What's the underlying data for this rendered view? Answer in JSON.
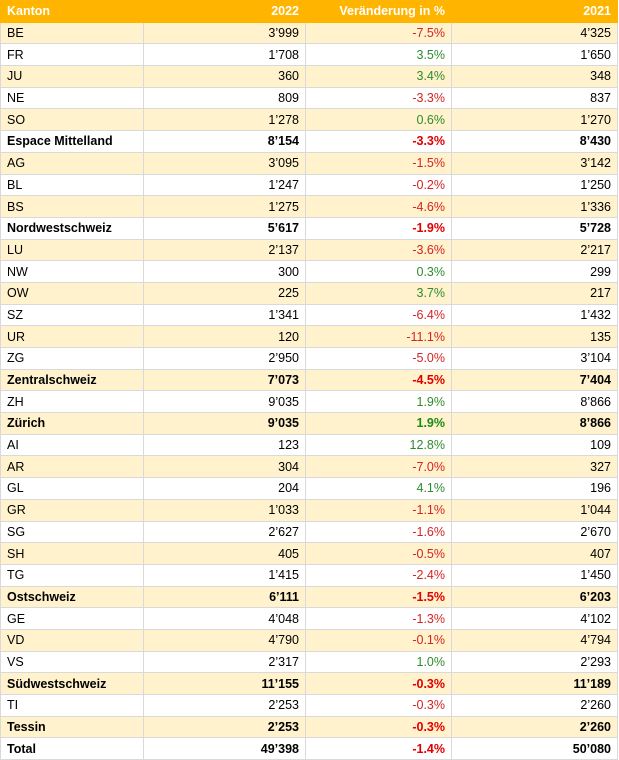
{
  "headers": [
    "Kanton",
    "2022",
    "Veränderung in %",
    "2021"
  ],
  "rows": [
    {
      "kanton": "BE",
      "y2022": "3’999",
      "change": "-7.5%",
      "y2021": "4’325",
      "bold": false
    },
    {
      "kanton": "FR",
      "y2022": "1’708",
      "change": "3.5%",
      "y2021": "1’650",
      "bold": false
    },
    {
      "kanton": "JU",
      "y2022": "360",
      "change": "3.4%",
      "y2021": "348",
      "bold": false
    },
    {
      "kanton": "NE",
      "y2022": "809",
      "change": "-3.3%",
      "y2021": "837",
      "bold": false
    },
    {
      "kanton": "SO",
      "y2022": "1’278",
      "change": "0.6%",
      "y2021": "1’270",
      "bold": false
    },
    {
      "kanton": "Espace Mittelland",
      "y2022": "8’154",
      "change": "-3.3%",
      "y2021": "8’430",
      "bold": true
    },
    {
      "kanton": "AG",
      "y2022": "3’095",
      "change": "-1.5%",
      "y2021": "3’142",
      "bold": false
    },
    {
      "kanton": "BL",
      "y2022": "1’247",
      "change": "-0.2%",
      "y2021": "1’250",
      "bold": false
    },
    {
      "kanton": "BS",
      "y2022": "1’275",
      "change": "-4.6%",
      "y2021": "1’336",
      "bold": false
    },
    {
      "kanton": "Nordwestschweiz",
      "y2022": "5’617",
      "change": "-1.9%",
      "y2021": "5’728",
      "bold": true
    },
    {
      "kanton": "LU",
      "y2022": "2’137",
      "change": "-3.6%",
      "y2021": "2’217",
      "bold": false
    },
    {
      "kanton": "NW",
      "y2022": "300",
      "change": "0.3%",
      "y2021": "299",
      "bold": false
    },
    {
      "kanton": "OW",
      "y2022": "225",
      "change": "3.7%",
      "y2021": "217",
      "bold": false
    },
    {
      "kanton": "SZ",
      "y2022": "1’341",
      "change": "-6.4%",
      "y2021": "1’432",
      "bold": false
    },
    {
      "kanton": "UR",
      "y2022": "120",
      "change": "-11.1%",
      "y2021": "135",
      "bold": false
    },
    {
      "kanton": "ZG",
      "y2022": "2’950",
      "change": "-5.0%",
      "y2021": "3’104",
      "bold": false
    },
    {
      "kanton": "Zentralschweiz",
      "y2022": "7’073",
      "change": "-4.5%",
      "y2021": "7’404",
      "bold": true
    },
    {
      "kanton": "ZH",
      "y2022": "9’035",
      "change": "1.9%",
      "y2021": "8’866",
      "bold": false
    },
    {
      "kanton": "Zürich",
      "y2022": "9’035",
      "change": "1.9%",
      "y2021": "8’866",
      "bold": true
    },
    {
      "kanton": "AI",
      "y2022": "123",
      "change": "12.8%",
      "y2021": "109",
      "bold": false
    },
    {
      "kanton": "AR",
      "y2022": "304",
      "change": "-7.0%",
      "y2021": "327",
      "bold": false
    },
    {
      "kanton": "GL",
      "y2022": "204",
      "change": "4.1%",
      "y2021": "196",
      "bold": false
    },
    {
      "kanton": "GR",
      "y2022": "1’033",
      "change": "-1.1%",
      "y2021": "1’044",
      "bold": false
    },
    {
      "kanton": "SG",
      "y2022": "2’627",
      "change": "-1.6%",
      "y2021": "2’670",
      "bold": false
    },
    {
      "kanton": "SH",
      "y2022": "405",
      "change": "-0.5%",
      "y2021": "407",
      "bold": false
    },
    {
      "kanton": "TG",
      "y2022": "1’415",
      "change": "-2.4%",
      "y2021": "1’450",
      "bold": false
    },
    {
      "kanton": "Ostschweiz",
      "y2022": "6’111",
      "change": "-1.5%",
      "y2021": "6’203",
      "bold": true
    },
    {
      "kanton": "GE",
      "y2022": "4’048",
      "change": "-1.3%",
      "y2021": "4’102",
      "bold": false
    },
    {
      "kanton": "VD",
      "y2022": "4’790",
      "change": "-0.1%",
      "y2021": "4’794",
      "bold": false
    },
    {
      "kanton": "VS",
      "y2022": "2’317",
      "change": "1.0%",
      "y2021": "2’293",
      "bold": false
    },
    {
      "kanton": "Südwestschweiz",
      "y2022": "11’155",
      "change": "-0.3%",
      "y2021": "11’189",
      "bold": true
    },
    {
      "kanton": "TI",
      "y2022": "2’253",
      "change": "-0.3%",
      "y2021": "2’260",
      "bold": false
    },
    {
      "kanton": "Tessin",
      "y2022": "2’253",
      "change": "-0.3%",
      "y2021": "2’260",
      "bold": true
    },
    {
      "kanton": "Total",
      "y2022": "49’398",
      "change": "-1.4%",
      "y2021": "50’080",
      "bold": true,
      "total": true
    }
  ],
  "colors": {
    "header_bg": "#ffb400",
    "header_text": "#ffffff",
    "band": "#fff2cc",
    "positive": "#2e8b2e",
    "negative": "#d42424"
  }
}
